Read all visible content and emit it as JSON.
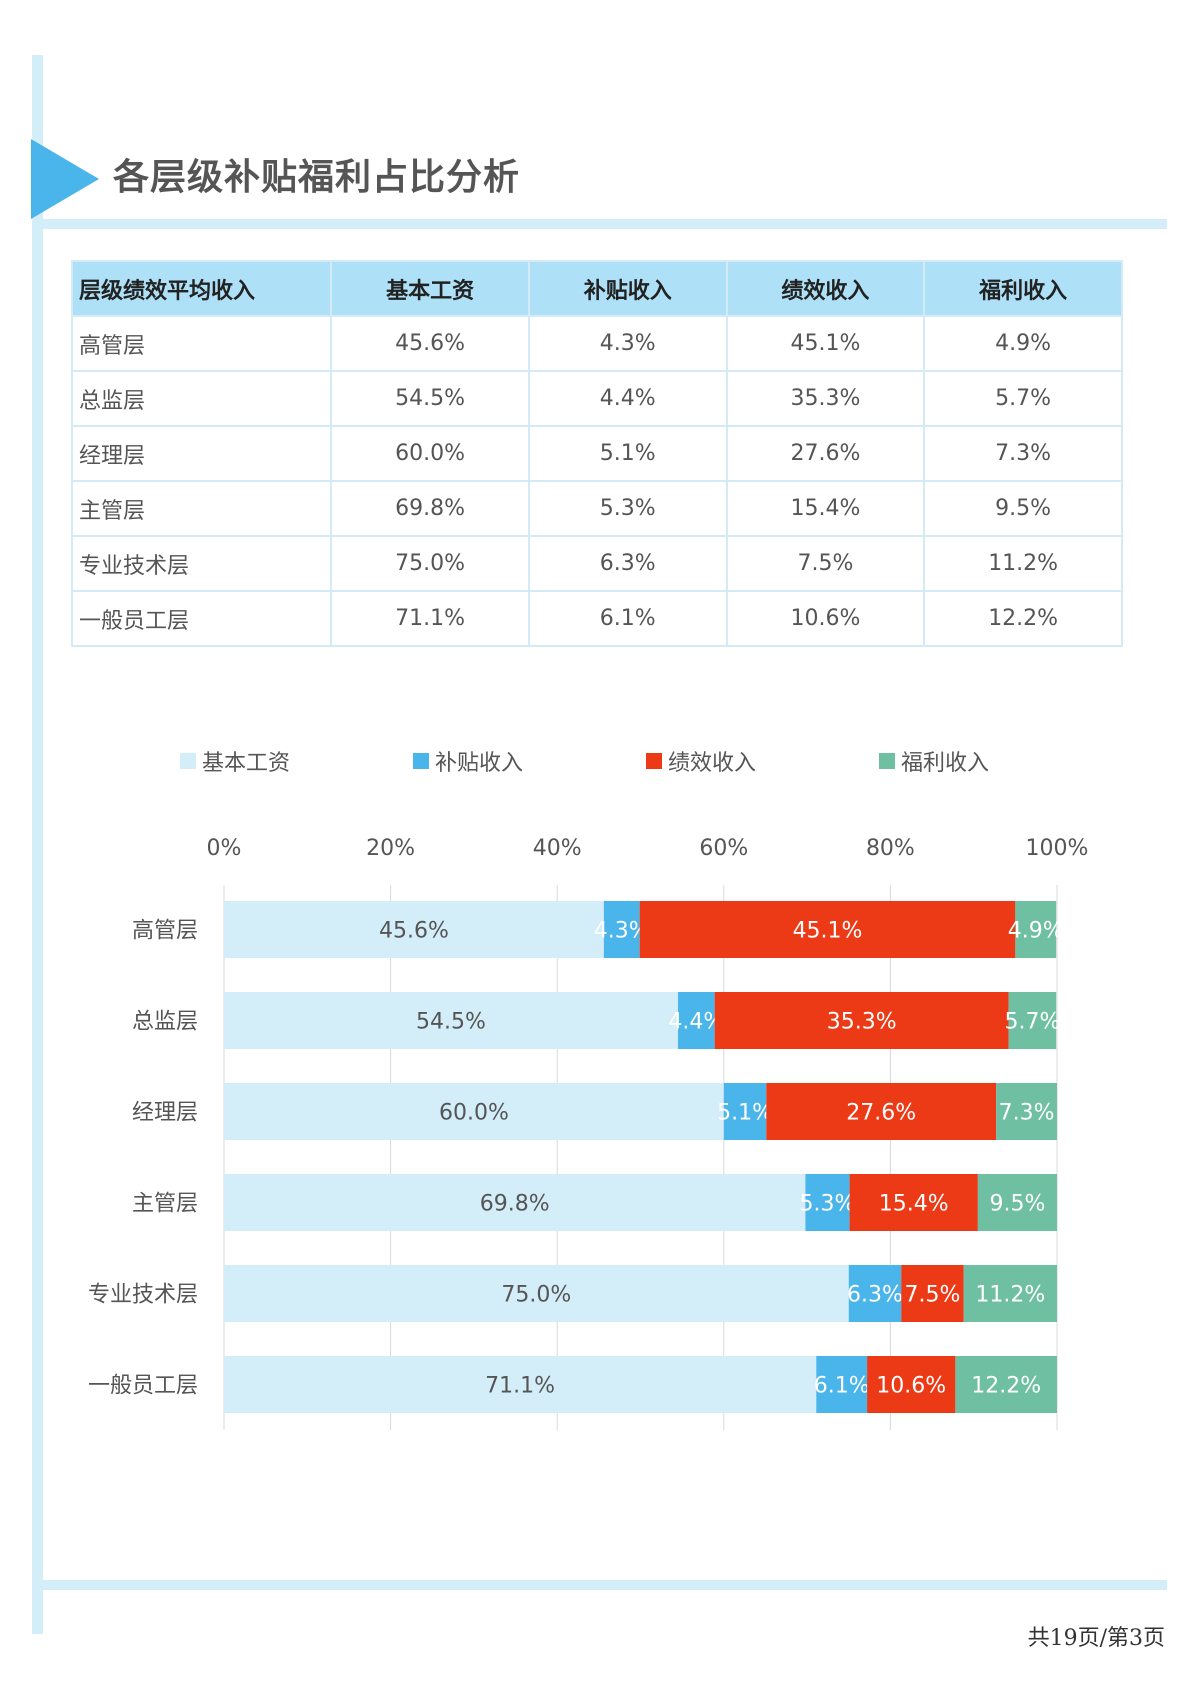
{
  "title": "各层级补贴福利占比分析",
  "table": {
    "headers": [
      "层级绩效平均收入",
      "基本工资",
      "补贴收入",
      "绩效收入",
      "福利收入"
    ],
    "rows": [
      [
        "高管层",
        "45.6%",
        "4.3%",
        "45.1%",
        "4.9%"
      ],
      [
        "总监层",
        "54.5%",
        "4.4%",
        "35.3%",
        "5.7%"
      ],
      [
        "经理层",
        "60.0%",
        "5.1%",
        "27.6%",
        "7.3%"
      ],
      [
        "主管层",
        "69.8%",
        "5.3%",
        "15.4%",
        "9.5%"
      ],
      [
        "专业技术层",
        "75.0%",
        "6.3%",
        "7.5%",
        "11.2%"
      ],
      [
        "一般员工层",
        "71.1%",
        "6.1%",
        "10.6%",
        "12.2%"
      ]
    ]
  },
  "colors": {
    "base": "#d3edf9",
    "subsidy": "#4ab5ea",
    "performance": "#ec3a16",
    "welfare": "#6fbfa2",
    "accent": "#4ab5ea"
  },
  "chart_data": {
    "type": "bar",
    "orientation": "horizontal",
    "stacked": true,
    "categories": [
      "高管层",
      "总监层",
      "经理层",
      "主管层",
      "专业技术层",
      "一般员工层"
    ],
    "series": [
      {
        "name": "基本工资",
        "values": [
          45.6,
          54.5,
          60.0,
          69.8,
          75.0,
          71.1
        ]
      },
      {
        "name": "补贴收入",
        "values": [
          4.3,
          4.4,
          5.1,
          5.3,
          6.3,
          6.1
        ]
      },
      {
        "name": "绩效收入",
        "values": [
          45.1,
          35.3,
          27.6,
          15.4,
          7.5,
          10.6
        ]
      },
      {
        "name": "福利收入",
        "values": [
          4.9,
          5.7,
          7.3,
          9.5,
          11.2,
          12.2
        ]
      }
    ],
    "x_ticks": [
      "0%",
      "20%",
      "40%",
      "60%",
      "80%",
      "100%"
    ],
    "xlim": [
      0,
      100
    ],
    "x_axis_position": "top",
    "legend_position": "top",
    "grid": true,
    "data_labels": true
  },
  "footer": "共19页/第3页"
}
